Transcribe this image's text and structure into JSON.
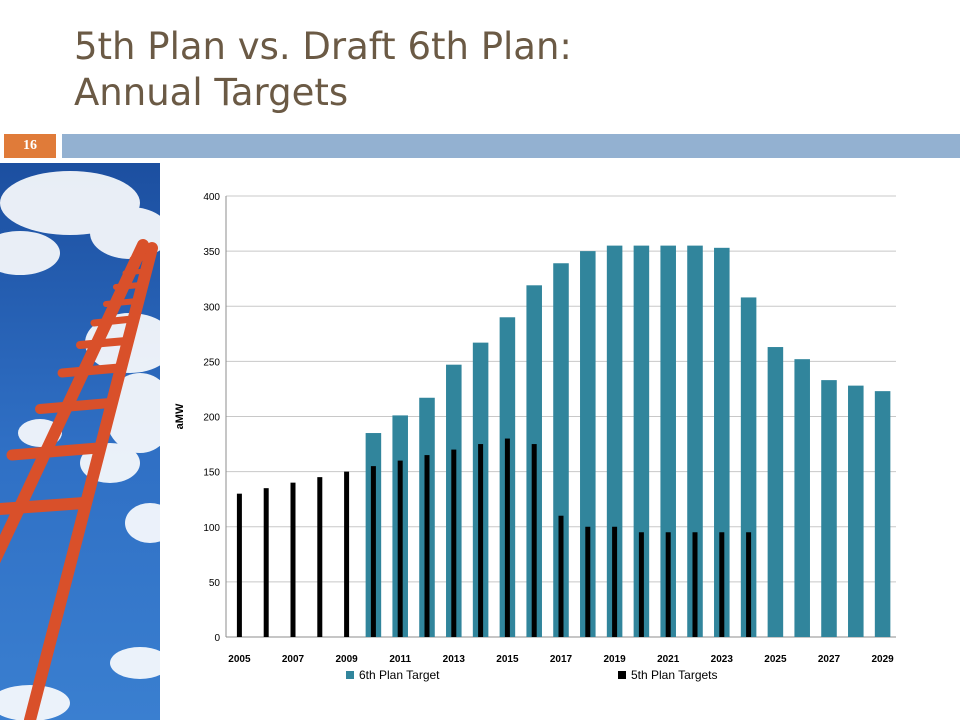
{
  "slide": {
    "title_line1": "5th Plan vs. Draft 6th Plan:",
    "title_line2": "Annual Targets",
    "page_number": "16",
    "photo_icon": "sky-ladder-photo",
    "colors": {
      "badge": "#e07b39",
      "header_bar": "#93b1d1",
      "title": "#6b5a45"
    }
  },
  "chart_data": {
    "type": "bar",
    "title": "",
    "xlabel": "",
    "ylabel": "aMW",
    "ylim": [
      0,
      400
    ],
    "yticks": [
      0,
      50,
      100,
      150,
      200,
      250,
      300,
      350,
      400
    ],
    "grid": true,
    "legend": "bottom",
    "categories": [
      "2005",
      "2006",
      "2007",
      "2008",
      "2009",
      "2010",
      "2011",
      "2012",
      "2013",
      "2014",
      "2015",
      "2016",
      "2017",
      "2018",
      "2019",
      "2020",
      "2021",
      "2022",
      "2023",
      "2024",
      "2025",
      "2026",
      "2027",
      "2028",
      "2029"
    ],
    "x_tick_labels": [
      "2005",
      "2007",
      "2009",
      "2011",
      "2013",
      "2015",
      "2017",
      "2019",
      "2021",
      "2023",
      "2025",
      "2027",
      "2029"
    ],
    "series": [
      {
        "name": "6th Plan Target",
        "color": "#31859c",
        "values": [
          null,
          null,
          null,
          null,
          null,
          185,
          201,
          217,
          247,
          267,
          290,
          319,
          339,
          350,
          355,
          355,
          355,
          355,
          353,
          308,
          263,
          252,
          233,
          228,
          223
        ]
      },
      {
        "name": "5th Plan Targets",
        "color": "#000000",
        "values": [
          130,
          135,
          140,
          145,
          150,
          155,
          160,
          165,
          170,
          175,
          180,
          175,
          110,
          100,
          100,
          95,
          95,
          95,
          95,
          95,
          null,
          null,
          null,
          null,
          null
        ]
      }
    ]
  }
}
